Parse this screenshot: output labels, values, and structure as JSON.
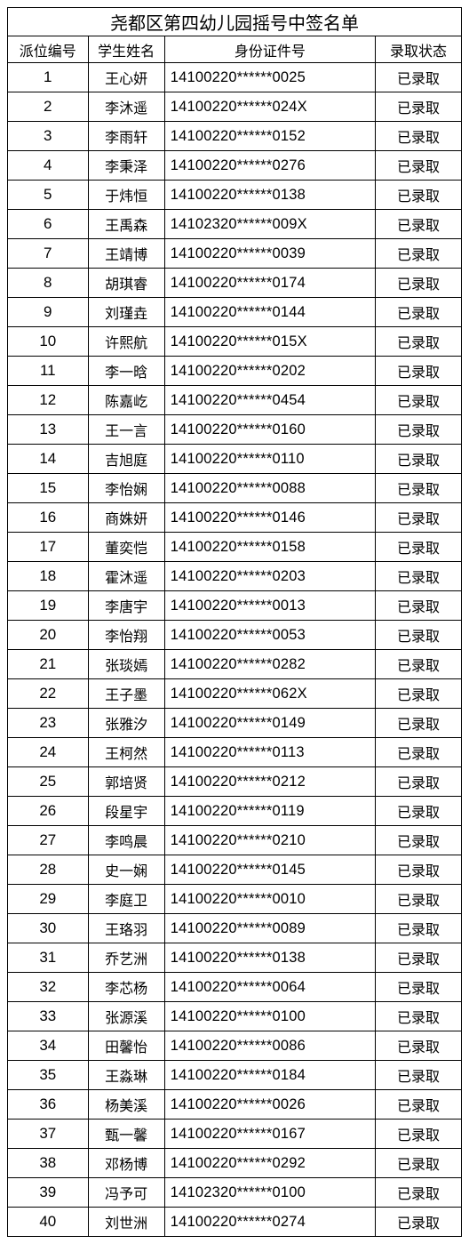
{
  "title": "尧都区第四幼儿园摇号中签名单",
  "columns": {
    "pos": "派位编号",
    "name": "学生姓名",
    "id": "身份证件号",
    "status": "录取状态"
  },
  "status_text": "已录取",
  "rows": [
    {
      "pos": "1",
      "name": "王心妍",
      "id": "14100220******0025"
    },
    {
      "pos": "2",
      "name": "李沐遥",
      "id": "14100220******024X"
    },
    {
      "pos": "3",
      "name": "李雨轩",
      "id": "14100220******0152"
    },
    {
      "pos": "4",
      "name": "李秉泽",
      "id": "14100220******0276"
    },
    {
      "pos": "5",
      "name": "于炜恒",
      "id": "14100220******0138"
    },
    {
      "pos": "6",
      "name": "王禹森",
      "id": "14102320******009X"
    },
    {
      "pos": "7",
      "name": "王靖博",
      "id": "14100220******0039"
    },
    {
      "pos": "8",
      "name": "胡琪睿",
      "id": "14100220******0174"
    },
    {
      "pos": "9",
      "name": "刘瑾垚",
      "id": "14100220******0144"
    },
    {
      "pos": "10",
      "name": "许熙航",
      "id": "14100220******015X"
    },
    {
      "pos": "11",
      "name": "李一晗",
      "id": "14100220******0202"
    },
    {
      "pos": "12",
      "name": "陈嘉屹",
      "id": "14100220******0454"
    },
    {
      "pos": "13",
      "name": "王一言",
      "id": "14100220******0160"
    },
    {
      "pos": "14",
      "name": "吉旭庭",
      "id": "14100220******0110"
    },
    {
      "pos": "15",
      "name": "李怡娴",
      "id": "14100220******0088"
    },
    {
      "pos": "16",
      "name": "商姝妍",
      "id": "14100220******0146"
    },
    {
      "pos": "17",
      "name": "董奕恺",
      "id": "14100220******0158"
    },
    {
      "pos": "18",
      "name": "霍沐遥",
      "id": "14100220******0203"
    },
    {
      "pos": "19",
      "name": "李唐宇",
      "id": "14100220******0013"
    },
    {
      "pos": "20",
      "name": "李怡翔",
      "id": "14100220******0053"
    },
    {
      "pos": "21",
      "name": "张琰嫣",
      "id": "14100220******0282"
    },
    {
      "pos": "22",
      "name": "王子墨",
      "id": "14100220******062X"
    },
    {
      "pos": "23",
      "name": "张雅汐",
      "id": "14100220******0149"
    },
    {
      "pos": "24",
      "name": "王柯然",
      "id": "14100220******0113"
    },
    {
      "pos": "25",
      "name": "郭培贤",
      "id": "14100220******0212"
    },
    {
      "pos": "26",
      "name": "段星宇",
      "id": "14100220******0119"
    },
    {
      "pos": "27",
      "name": "李鸣晨",
      "id": "14100220******0210"
    },
    {
      "pos": "28",
      "name": "史一娴",
      "id": "14100220******0145"
    },
    {
      "pos": "29",
      "name": "李庭卫",
      "id": "14100220******0010"
    },
    {
      "pos": "30",
      "name": "王珞羽",
      "id": "14100220******0089"
    },
    {
      "pos": "31",
      "name": "乔艺洲",
      "id": "14100220******0138"
    },
    {
      "pos": "32",
      "name": "李芯杨",
      "id": "14100220******0064"
    },
    {
      "pos": "33",
      "name": "张源溪",
      "id": "14100220******0100"
    },
    {
      "pos": "34",
      "name": "田馨怡",
      "id": "14100220******0086"
    },
    {
      "pos": "35",
      "name": "王淼琳",
      "id": "14100220******0184"
    },
    {
      "pos": "36",
      "name": "杨美溪",
      "id": "14100220******0026"
    },
    {
      "pos": "37",
      "name": "甄一馨",
      "id": "14100220******0167"
    },
    {
      "pos": "38",
      "name": "邓杨博",
      "id": "14100220******0292"
    },
    {
      "pos": "39",
      "name": "冯予可",
      "id": "14102320******0100"
    },
    {
      "pos": "40",
      "name": "刘世洲",
      "id": "14100220******0274"
    }
  ]
}
